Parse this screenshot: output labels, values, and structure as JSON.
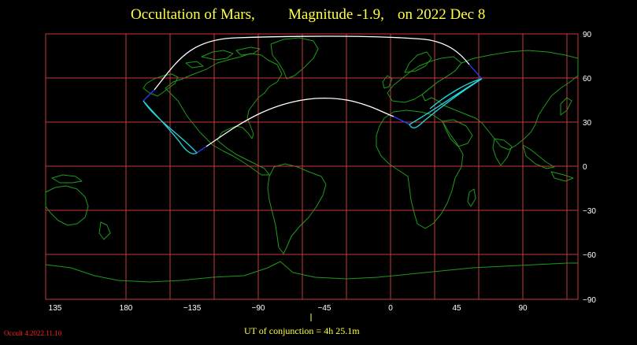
{
  "title": {
    "event": "Occultation  of  Mars,",
    "magnitude": "Magnitude -1.9,",
    "date": "on  2022 Dec  8"
  },
  "map": {
    "lon_range": [
      115,
      145
    ],
    "lat_range": [
      -90,
      90
    ],
    "lon_tick_labels": [
      "135",
      "180",
      "−135",
      "−90",
      "−45",
      "0",
      "45",
      "90"
    ],
    "lat_tick_labels": [
      "90",
      "60",
      "30",
      "0",
      "−30",
      "−60",
      "−90"
    ],
    "colors": {
      "background": "#000000",
      "grid": "#c83a3a",
      "coastline": "#1c9b1c",
      "occultation_limit": "#ffffff",
      "twilight_limit": "#22d8e0",
      "daylight_limit": "#2a3cff",
      "title": "#ffff44",
      "version": "#ff2020"
    }
  },
  "footer": {
    "conjunction": "UT of conjunction =  4h 25.1m",
    "version": "Occult 4.2022.11.10"
  }
}
